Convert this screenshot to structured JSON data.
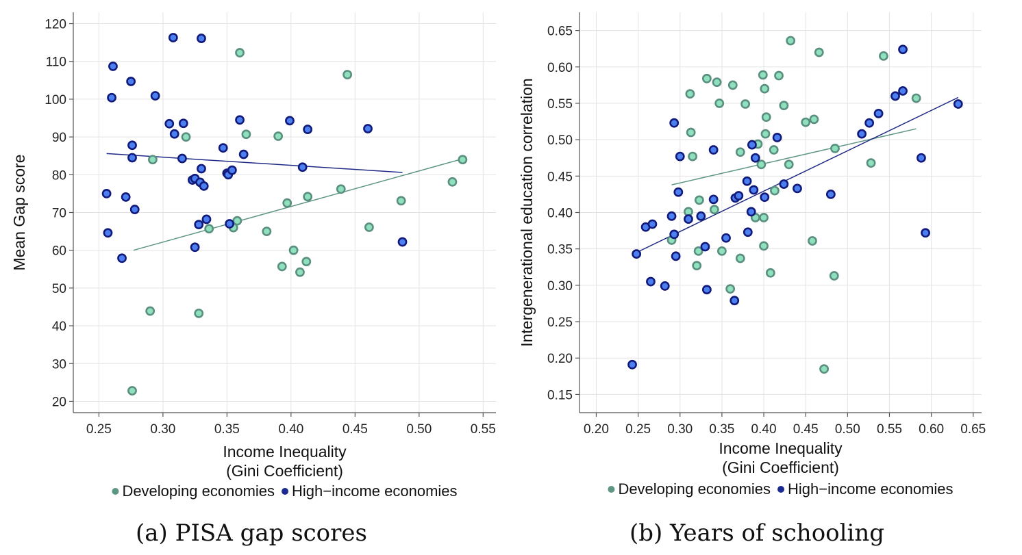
{
  "colors": {
    "developing_fill": "#8fe0bd",
    "developing_stroke": "#5a8f80",
    "developing_line": "#5e9584",
    "high_fill": "#4c7ff0",
    "high_stroke": "#111a7a",
    "high_line": "#1f2a86",
    "legend_dev": "#5e9584",
    "legend_high": "#1a2a8f"
  },
  "chart_data": [
    {
      "type": "scatter",
      "caption": "(a) PISA gap scores",
      "xlabel": "Income Inequality",
      "xlabel2": "(Gini Coefficient)",
      "ylabel": "Mean Gap score",
      "xlim": [
        0.23,
        0.56
      ],
      "ylim": [
        17,
        123
      ],
      "xticks": [
        "0.25",
        "0.30",
        "0.35",
        "0.40",
        "0.45",
        "0.50",
        "0.55"
      ],
      "yticks": [
        "20",
        "30",
        "40",
        "50",
        "60",
        "70",
        "80",
        "90",
        "100",
        "110",
        "120"
      ],
      "legend": [
        "Developing economies",
        "High−income economies"
      ],
      "grid": true,
      "series": [
        {
          "name": "Developing economies",
          "points": [
            [
              0.276,
              22.8
            ],
            [
              0.29,
              43.9
            ],
            [
              0.292,
              84.0
            ],
            [
              0.318,
              90.0
            ],
            [
              0.328,
              43.3
            ],
            [
              0.336,
              65.7
            ],
            [
              0.355,
              66.0
            ],
            [
              0.358,
              67.8
            ],
            [
              0.36,
              112.3
            ],
            [
              0.365,
              90.7
            ],
            [
              0.381,
              65.0
            ],
            [
              0.39,
              90.2
            ],
            [
              0.393,
              55.7
            ],
            [
              0.397,
              72.5
            ],
            [
              0.402,
              60.0
            ],
            [
              0.407,
              54.2
            ],
            [
              0.412,
              57.0
            ],
            [
              0.413,
              74.2
            ],
            [
              0.439,
              76.2
            ],
            [
              0.444,
              106.5
            ],
            [
              0.461,
              66.1
            ],
            [
              0.486,
              73.1
            ],
            [
              0.526,
              78.1
            ],
            [
              0.534,
              84.0
            ]
          ],
          "fit": [
            [
              0.277,
              60.0
            ],
            [
              0.535,
              84.3
            ]
          ]
        },
        {
          "name": "High−income economies",
          "points": [
            [
              0.256,
              75.0
            ],
            [
              0.257,
              64.6
            ],
            [
              0.26,
              100.4
            ],
            [
              0.261,
              108.7
            ],
            [
              0.268,
              57.9
            ],
            [
              0.271,
              74.1
            ],
            [
              0.275,
              104.7
            ],
            [
              0.276,
              87.8
            ],
            [
              0.276,
              84.5
            ],
            [
              0.278,
              70.8
            ],
            [
              0.294,
              100.9
            ],
            [
              0.305,
              93.5
            ],
            [
              0.308,
              116.3
            ],
            [
              0.309,
              90.8
            ],
            [
              0.315,
              84.3
            ],
            [
              0.316,
              93.6
            ],
            [
              0.323,
              78.6
            ],
            [
              0.325,
              60.8
            ],
            [
              0.325,
              79.0
            ],
            [
              0.328,
              66.8
            ],
            [
              0.329,
              78.0
            ],
            [
              0.33,
              81.6
            ],
            [
              0.33,
              116.1
            ],
            [
              0.332,
              77.0
            ],
            [
              0.334,
              68.2
            ],
            [
              0.347,
              87.1
            ],
            [
              0.35,
              80.4
            ],
            [
              0.351,
              80.0
            ],
            [
              0.352,
              67.0
            ],
            [
              0.354,
              81.2
            ],
            [
              0.36,
              94.5
            ],
            [
              0.363,
              85.4
            ],
            [
              0.399,
              94.3
            ],
            [
              0.409,
              82.0
            ],
            [
              0.413,
              92.0
            ],
            [
              0.46,
              92.2
            ],
            [
              0.487,
              62.2
            ]
          ],
          "fit": [
            [
              0.256,
              85.6
            ],
            [
              0.487,
              80.6
            ]
          ]
        }
      ]
    },
    {
      "type": "scatter",
      "caption": "(b) Years of schooling",
      "xlabel": "Income Inequality",
      "xlabel2": "(Gini Coefficient)",
      "ylabel": "Intergenerational education correlation",
      "xlim": [
        0.18,
        0.66
      ],
      "ylim": [
        0.125,
        0.675
      ],
      "xticks": [
        "0.20",
        "0.25",
        "0.30",
        "0.35",
        "0.40",
        "0.45",
        "0.50",
        "0.55",
        "0.60",
        "0.65"
      ],
      "yticks": [
        "0.15",
        "0.20",
        "0.25",
        "0.30",
        "0.35",
        "0.40",
        "0.45",
        "0.50",
        "0.55",
        "0.60",
        "0.65"
      ],
      "legend": [
        "Developing economies",
        "High−income economies"
      ],
      "grid": true,
      "series": [
        {
          "name": "Developing economies",
          "points": [
            [
              0.29,
              0.362
            ],
            [
              0.31,
              0.401
            ],
            [
              0.312,
              0.563
            ],
            [
              0.313,
              0.51
            ],
            [
              0.315,
              0.477
            ],
            [
              0.32,
              0.327
            ],
            [
              0.322,
              0.347
            ],
            [
              0.323,
              0.417
            ],
            [
              0.332,
              0.584
            ],
            [
              0.341,
              0.404
            ],
            [
              0.344,
              0.579
            ],
            [
              0.347,
              0.55
            ],
            [
              0.35,
              0.347
            ],
            [
              0.36,
              0.295
            ],
            [
              0.363,
              0.575
            ],
            [
              0.372,
              0.337
            ],
            [
              0.372,
              0.483
            ],
            [
              0.378,
              0.549
            ],
            [
              0.39,
              0.393
            ],
            [
              0.393,
              0.494
            ],
            [
              0.397,
              0.466
            ],
            [
              0.399,
              0.589
            ],
            [
              0.4,
              0.354
            ],
            [
              0.4,
              0.393
            ],
            [
              0.401,
              0.57
            ],
            [
              0.402,
              0.508
            ],
            [
              0.403,
              0.531
            ],
            [
              0.408,
              0.317
            ],
            [
              0.412,
              0.486
            ],
            [
              0.413,
              0.43
            ],
            [
              0.418,
              0.588
            ],
            [
              0.424,
              0.547
            ],
            [
              0.43,
              0.466
            ],
            [
              0.432,
              0.636
            ],
            [
              0.45,
              0.524
            ],
            [
              0.46,
              0.528
            ],
            [
              0.458,
              0.361
            ],
            [
              0.466,
              0.62
            ],
            [
              0.472,
              0.185
            ],
            [
              0.484,
              0.313
            ],
            [
              0.485,
              0.488
            ],
            [
              0.528,
              0.468
            ],
            [
              0.543,
              0.615
            ],
            [
              0.582,
              0.557
            ]
          ],
          "fit": [
            [
              0.29,
              0.438
            ],
            [
              0.582,
              0.515
            ]
          ]
        },
        {
          "name": "High−income economies",
          "points": [
            [
              0.243,
              0.191
            ],
            [
              0.248,
              0.343
            ],
            [
              0.259,
              0.38
            ],
            [
              0.265,
              0.305
            ],
            [
              0.267,
              0.384
            ],
            [
              0.282,
              0.299
            ],
            [
              0.29,
              0.395
            ],
            [
              0.293,
              0.523
            ],
            [
              0.293,
              0.37
            ],
            [
              0.295,
              0.34
            ],
            [
              0.298,
              0.428
            ],
            [
              0.3,
              0.477
            ],
            [
              0.31,
              0.391
            ],
            [
              0.325,
              0.395
            ],
            [
              0.33,
              0.353
            ],
            [
              0.332,
              0.294
            ],
            [
              0.34,
              0.486
            ],
            [
              0.34,
              0.418
            ],
            [
              0.355,
              0.365
            ],
            [
              0.365,
              0.279
            ],
            [
              0.366,
              0.42
            ],
            [
              0.37,
              0.423
            ],
            [
              0.38,
              0.443
            ],
            [
              0.381,
              0.373
            ],
            [
              0.385,
              0.401
            ],
            [
              0.386,
              0.493
            ],
            [
              0.388,
              0.431
            ],
            [
              0.39,
              0.475
            ],
            [
              0.401,
              0.421
            ],
            [
              0.416,
              0.503
            ],
            [
              0.424,
              0.439
            ],
            [
              0.44,
              0.433
            ],
            [
              0.48,
              0.425
            ],
            [
              0.517,
              0.508
            ],
            [
              0.526,
              0.523
            ],
            [
              0.537,
              0.536
            ],
            [
              0.557,
              0.56
            ],
            [
              0.566,
              0.567
            ],
            [
              0.566,
              0.624
            ],
            [
              0.588,
              0.475
            ],
            [
              0.593,
              0.372
            ],
            [
              0.632,
              0.549
            ]
          ],
          "fit": [
            [
              0.248,
              0.345
            ],
            [
              0.632,
              0.558
            ]
          ]
        }
      ]
    }
  ]
}
